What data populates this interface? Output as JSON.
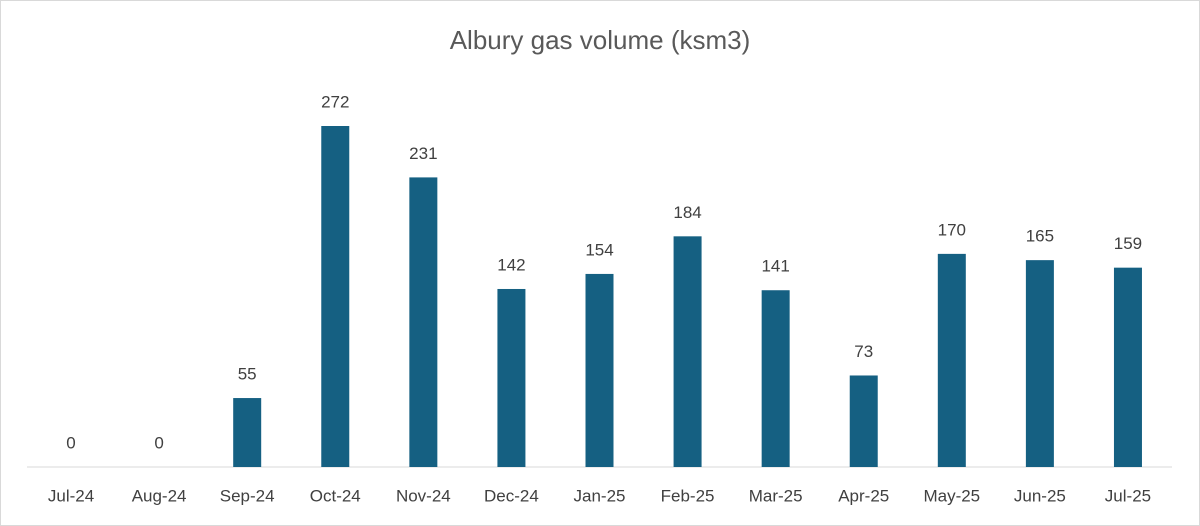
{
  "chart_data": {
    "type": "bar",
    "title": "Albury gas volume (ksm3)",
    "categories": [
      "Jul-24",
      "Aug-24",
      "Sep-24",
      "Oct-24",
      "Nov-24",
      "Dec-24",
      "Jan-25",
      "Feb-25",
      "Mar-25",
      "Apr-25",
      "May-25",
      "Jun-25",
      "Jul-25"
    ],
    "values": [
      0,
      0,
      55,
      272,
      231,
      142,
      154,
      184,
      141,
      73,
      170,
      165,
      159
    ],
    "color": "#156082"
  }
}
